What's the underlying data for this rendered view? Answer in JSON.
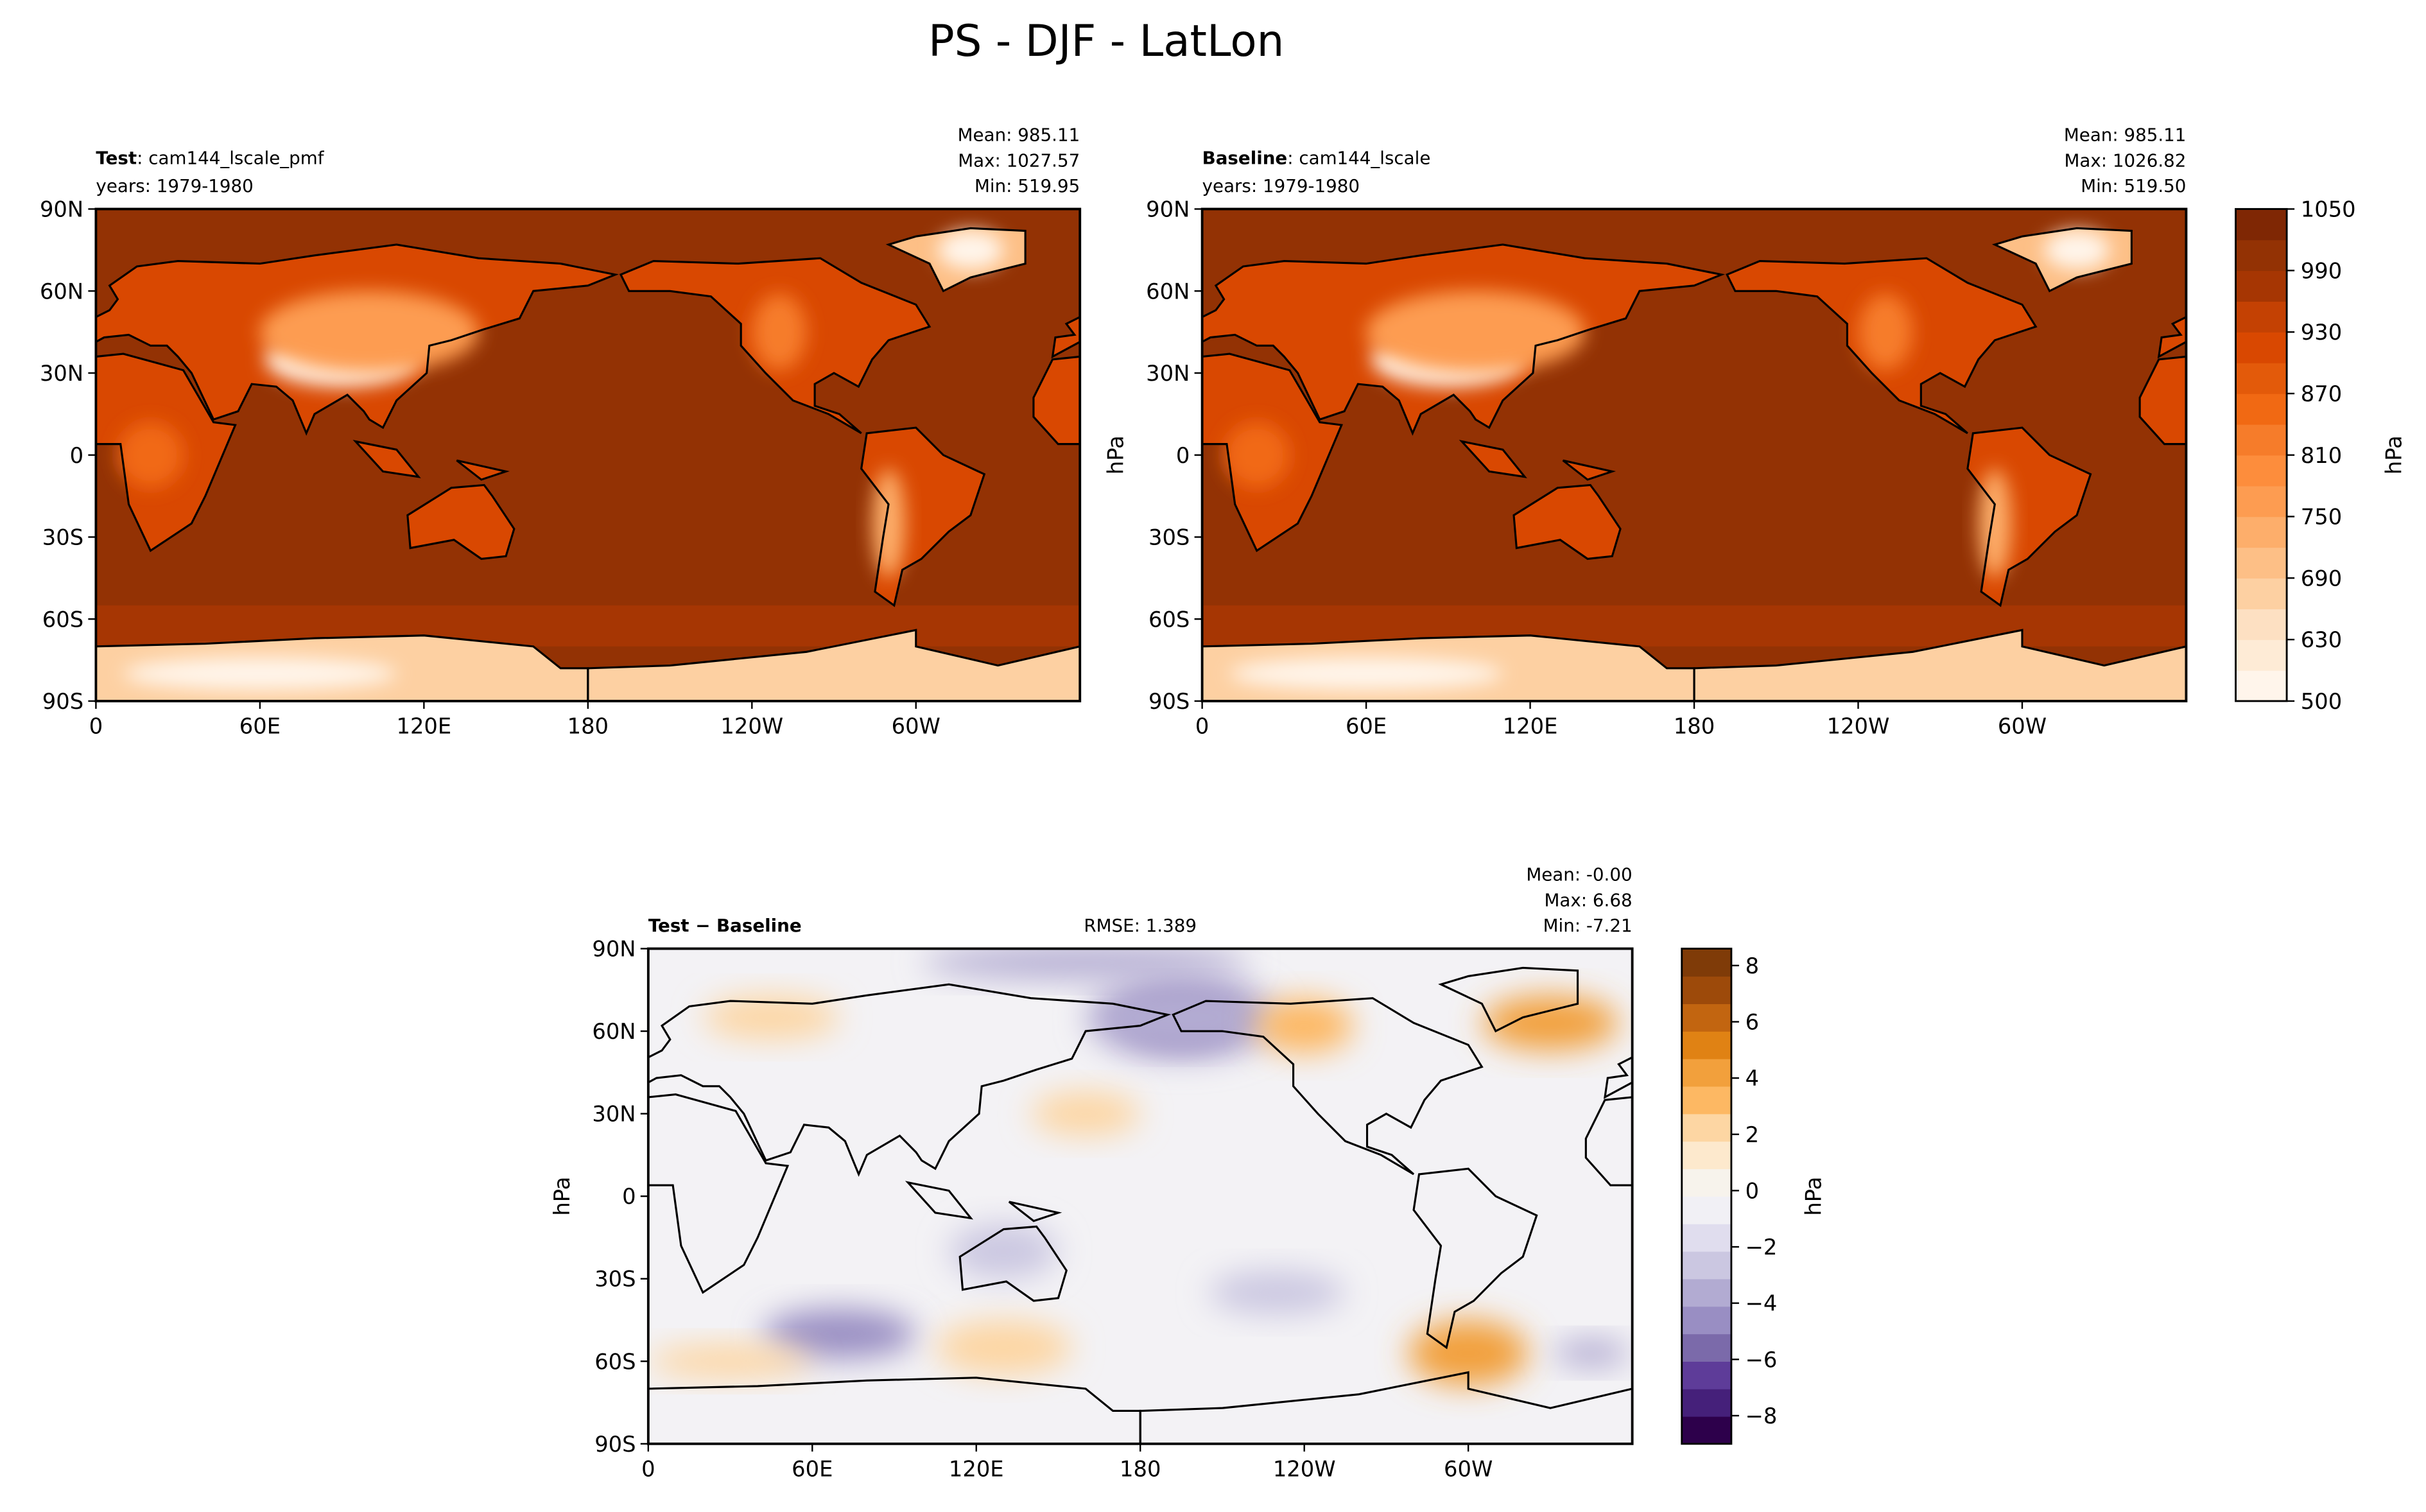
{
  "title": "PS - DJF - LatLon",
  "chart_data": [
    {
      "type": "map",
      "title_bold": "Test",
      "title": ": cam144_lscale_pmf",
      "years": "years: 1979-1980",
      "stats": [
        "Mean: 985.11",
        "Max: 1027.57",
        "Min: 519.95"
      ],
      "xlim": [
        0,
        360
      ],
      "ylim": [
        -90,
        90
      ],
      "xticks": [
        0,
        {
          "value": 60,
          "label": "60E"
        },
        {
          "value": 120,
          "label": "120E"
        },
        180,
        {
          "value": 240,
          "label": "120W"
        },
        {
          "value": 300,
          "label": "60W"
        }
      ],
      "yticks": [
        {
          "value": -90,
          "label": "90S"
        },
        {
          "value": -60,
          "label": "60S"
        },
        {
          "value": -30,
          "label": "30S"
        },
        0,
        {
          "value": 30,
          "label": "30N"
        },
        {
          "value": 60,
          "label": "60N"
        },
        {
          "value": 90,
          "label": "90N"
        }
      ]
    },
    {
      "type": "map",
      "title_bold": "Baseline",
      "title": ": cam144_lscale",
      "years": "years: 1979-1980",
      "stats": [
        "Mean: 985.11",
        "Max: 1026.82",
        "Min: 519.50"
      ],
      "ylabel": "hPa",
      "xlim": [
        0,
        360
      ],
      "ylim": [
        -90,
        90
      ],
      "xticks": [
        0,
        {
          "value": 60,
          "label": "60E"
        },
        {
          "value": 120,
          "label": "120E"
        },
        180,
        {
          "value": 240,
          "label": "120W"
        },
        {
          "value": 300,
          "label": "60W"
        }
      ],
      "yticks": [
        {
          "value": -90,
          "label": "90S"
        },
        {
          "value": -60,
          "label": "60S"
        },
        {
          "value": -30,
          "label": "30S"
        },
        0,
        {
          "value": 30,
          "label": "30N"
        },
        {
          "value": 60,
          "label": "60N"
        },
        {
          "value": 90,
          "label": "90N"
        }
      ],
      "colorbar": {
        "label": "hPa",
        "levels": [
          500,
          600,
          630,
          660,
          690,
          720,
          750,
          780,
          810,
          840,
          870,
          900,
          930,
          960,
          990,
          1020,
          1050
        ],
        "ticks": [
          500,
          630,
          690,
          750,
          810,
          870,
          930,
          990,
          1050
        ],
        "colors": [
          "#fff5eb",
          "#feebd6",
          "#fde0c2",
          "#fdd0a2",
          "#fdbf86",
          "#fdae6b",
          "#fd9c51",
          "#fd8d3c",
          "#f67c2a",
          "#f16913",
          "#e35a0a",
          "#d94801",
          "#c44103",
          "#a63603",
          "#933204",
          "#7f2704"
        ]
      }
    },
    {
      "type": "map",
      "title_bold": "Test − Baseline",
      "center_label": "RMSE: 1.389",
      "stats": [
        "Mean: -0.00",
        "Max:  6.68",
        "Min: -7.21"
      ],
      "ylabel": "hPa",
      "xlim": [
        0,
        360
      ],
      "ylim": [
        -90,
        90
      ],
      "xticks": [
        0,
        {
          "value": 60,
          "label": "60E"
        },
        {
          "value": 120,
          "label": "120E"
        },
        180,
        {
          "value": 240,
          "label": "120W"
        },
        {
          "value": 300,
          "label": "60W"
        }
      ],
      "yticks": [
        {
          "value": -90,
          "label": "90S"
        },
        {
          "value": -60,
          "label": "60S"
        },
        {
          "value": -30,
          "label": "30S"
        },
        0,
        {
          "value": 30,
          "label": "30N"
        },
        {
          "value": 60,
          "label": "60N"
        },
        {
          "value": 90,
          "label": "90N"
        }
      ],
      "colorbar": {
        "label": "hPa",
        "lim": [
          -9,
          8.6
        ],
        "ticks": [
          {
            "value": -8,
            "label": "−8"
          },
          {
            "value": -6,
            "label": "−6"
          },
          {
            "value": -4,
            "label": "−4"
          },
          {
            "value": -2,
            "label": "−2"
          },
          0,
          2,
          4,
          6,
          8
        ],
        "colors": [
          "#2d004b",
          "#45207a",
          "#5e3c99",
          "#7b6aaa",
          "#998ec3",
          "#b2abd2",
          "#cbc7e1",
          "#e0ddee",
          "#f1f0f5",
          "#f7f3ec",
          "#fde9cd",
          "#fdd6a3",
          "#fdb863",
          "#f2a03c",
          "#e08214",
          "#c26510",
          "#9d4a0a",
          "#7f3b08"
        ]
      }
    }
  ]
}
